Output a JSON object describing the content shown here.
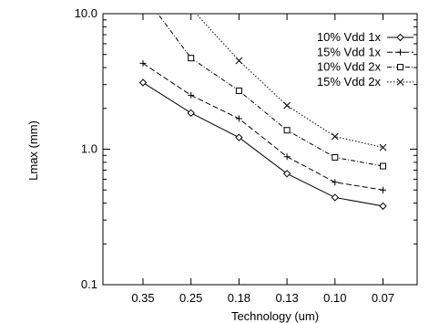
{
  "chart_data": {
    "type": "line",
    "title": "",
    "xlabel": "Technology (um)",
    "ylabel": "Lmax (mm)",
    "categories": [
      "0.35",
      "0.25",
      "0.18",
      "0.13",
      "0.10",
      "0.07"
    ],
    "y_scale": "log",
    "ylim": [
      0.1,
      10.0
    ],
    "y_ticks": [
      "0.1",
      "1.0",
      "10.0"
    ],
    "grid": false,
    "legend_position": "top-right",
    "series": [
      {
        "name": "10% Vdd 1x",
        "marker": "diamond",
        "dash": "solid",
        "values": [
          3.1,
          1.85,
          1.22,
          0.66,
          0.44,
          0.38
        ]
      },
      {
        "name": "15% Vdd 1x",
        "marker": "plus",
        "dash": "dashed",
        "values": [
          4.3,
          2.5,
          1.68,
          0.88,
          0.57,
          0.5
        ]
      },
      {
        "name": "10% Vdd 2x",
        "marker": "square",
        "dash": "dashdot",
        "values": [
          null,
          4.7,
          2.7,
          1.38,
          0.87,
          0.75
        ]
      },
      {
        "name": "15% Vdd 2x",
        "marker": "x",
        "dash": "dotted",
        "values": [
          null,
          null,
          4.5,
          2.1,
          1.24,
          1.03
        ]
      }
    ],
    "offscale_upper_segments": [
      {
        "series": 2,
        "from_index": 0,
        "to_index": 1,
        "from_value": 14.0
      },
      {
        "series": 3,
        "from_index": 1,
        "to_index": 2,
        "from_value": 11.0
      }
    ]
  }
}
